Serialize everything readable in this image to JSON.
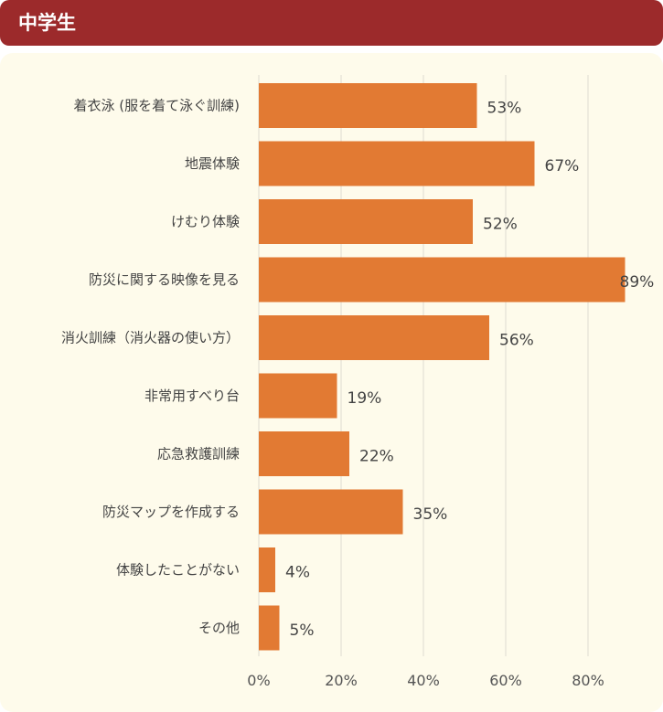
{
  "header": {
    "title": "中学生"
  },
  "colors": {
    "header_bg": "#9c2a2b",
    "panel_bg": "#fefbeb",
    "bar": "#e27a33",
    "grid": "#dedbd0"
  },
  "chart_data": {
    "type": "bar",
    "orientation": "horizontal",
    "categories": [
      "着衣泳 (服を着て泳ぐ訓練)",
      "地震体験",
      "けむり体験",
      "防災に関する映像を見る",
      "消火訓練（消火器の使い方）",
      "非常用すべり台",
      "応急救護訓練",
      "防災マップを作成する",
      "体験したことがない",
      "その他"
    ],
    "values": [
      53,
      67,
      52,
      89,
      56,
      19,
      22,
      35,
      4,
      5
    ],
    "value_labels": [
      "53%",
      "67%",
      "52%",
      "89%",
      "56%",
      "19%",
      "22%",
      "35%",
      "4%",
      "5%"
    ],
    "xlim": [
      0,
      90
    ],
    "ticks": [
      0,
      20,
      40,
      60,
      80
    ],
    "tick_labels": [
      "0%",
      "20%",
      "40%",
      "60%",
      "80%"
    ],
    "grid": true,
    "legend": "none"
  }
}
